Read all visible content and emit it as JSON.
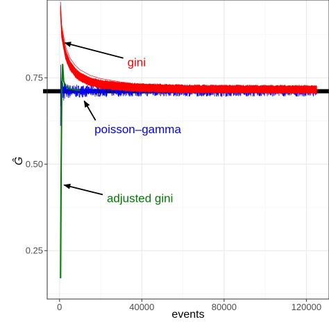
{
  "chart_data": {
    "type": "line",
    "xlabel": "events",
    "ylabel": "Ĝ",
    "xlim": [
      -6000,
      131000
    ],
    "ylim": [
      0.11,
      0.975
    ],
    "x_ticks": [
      0,
      40000,
      80000,
      120000
    ],
    "x_tick_labels": [
      "0",
      "40000",
      "80000",
      "120000"
    ],
    "y_ticks": [
      0.25,
      0.5,
      0.75
    ],
    "y_tick_labels": [
      "0.25",
      "0.50",
      "0.75"
    ],
    "grid": true,
    "reference_line": {
      "y": 0.711,
      "color": "#000000"
    },
    "series": [
      {
        "name": "gini",
        "color": "#ff0000",
        "x": [
          500,
          1000,
          2000,
          3000,
          5000,
          7500,
          10000,
          15000,
          20000,
          30000,
          40000,
          60000,
          80000,
          100000,
          125000
        ],
        "y": [
          0.945,
          0.88,
          0.845,
          0.815,
          0.785,
          0.765,
          0.752,
          0.738,
          0.731,
          0.725,
          0.721,
          0.718,
          0.717,
          0.717,
          0.716
        ],
        "band": 0.01
      },
      {
        "name": "poisson-gamma",
        "color": "#0000ff",
        "x": [
          500,
          1000,
          2000,
          3000,
          5000,
          10000,
          20000,
          40000,
          60000,
          80000,
          100000,
          125000
        ],
        "y": [
          0.711,
          0.711,
          0.711,
          0.711,
          0.711,
          0.711,
          0.711,
          0.711,
          0.711,
          0.711,
          0.711,
          0.711
        ],
        "spread": [
          0.1,
          0.05,
          0.03,
          0.025,
          0.02,
          0.018,
          0.016,
          0.015,
          0.015,
          0.015,
          0.015,
          0.015
        ]
      },
      {
        "name": "adjusted gini",
        "color": "#007a00",
        "x": [
          500,
          800,
          1100,
          1500,
          2000,
          3000,
          5000,
          10000
        ],
        "y": [
          0.17,
          0.5,
          0.72,
          0.79,
          0.74,
          0.725,
          0.718,
          0.713
        ]
      }
    ],
    "annotations": [
      {
        "text": "gini",
        "color": "#ff0000",
        "label_x": 33000,
        "label_y": 0.783,
        "arrow_from": [
          31000,
          0.807
        ],
        "arrow_to": [
          2500,
          0.851
        ]
      },
      {
        "text": "poisson–gamma",
        "color": "#0000ff",
        "label_x": 17000,
        "label_y": 0.59,
        "arrow_from": [
          17500,
          0.627
        ],
        "arrow_to": [
          12000,
          0.683
        ]
      },
      {
        "text": "adjusted gini",
        "color": "#007a00",
        "label_x": 23000,
        "label_y": 0.39,
        "arrow_from": [
          21000,
          0.412
        ],
        "arrow_to": [
          2200,
          0.44
        ]
      }
    ]
  }
}
